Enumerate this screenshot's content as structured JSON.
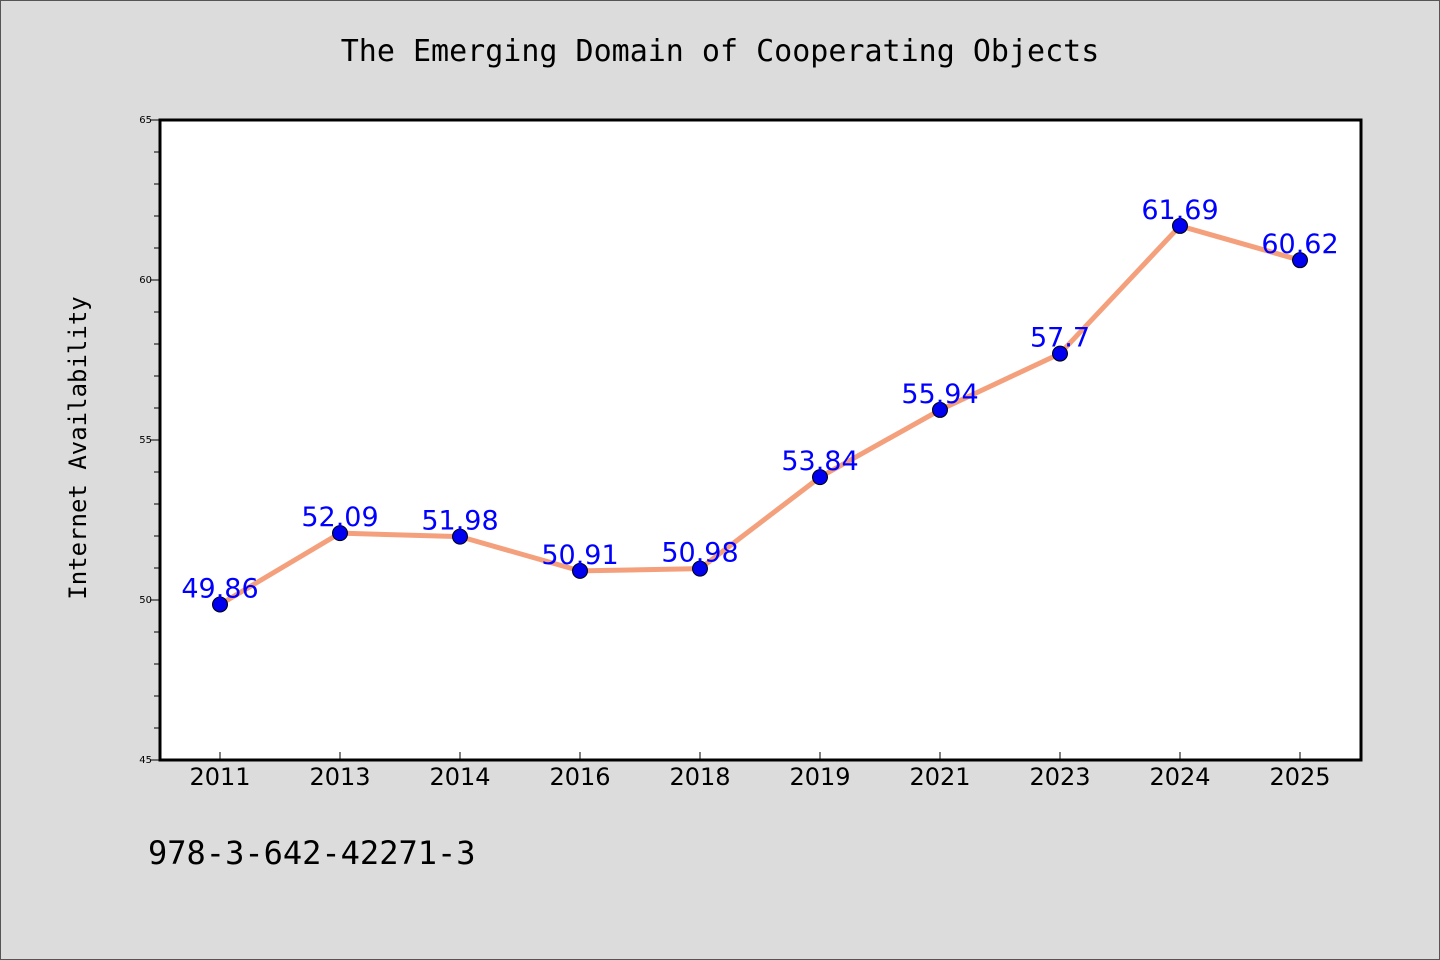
{
  "chart_title": "The Emerging Domain of Cooperating Objects",
  "footer_text": "978-3-642-42271-3",
  "chart_data": {
    "type": "line",
    "title": "The Emerging Domain of Cooperating Objects",
    "xlabel": "",
    "ylabel": "Internet Availability",
    "categories": [
      "2011",
      "2013",
      "2014",
      "2016",
      "2018",
      "2019",
      "2021",
      "2023",
      "2024",
      "2025"
    ],
    "values": [
      49.86,
      52.09,
      51.98,
      50.91,
      50.98,
      53.84,
      55.94,
      57.7,
      61.69,
      60.62
    ],
    "ylim": [
      45,
      65
    ],
    "yticks": [
      45,
      50,
      55,
      60,
      65
    ],
    "grid": false,
    "legend": "none",
    "colors": {
      "line": "#f4a07c",
      "marker": "#0000ee",
      "label": "#0000ff",
      "background": "#dcdcdc",
      "plot_background": "#ffffff"
    }
  }
}
